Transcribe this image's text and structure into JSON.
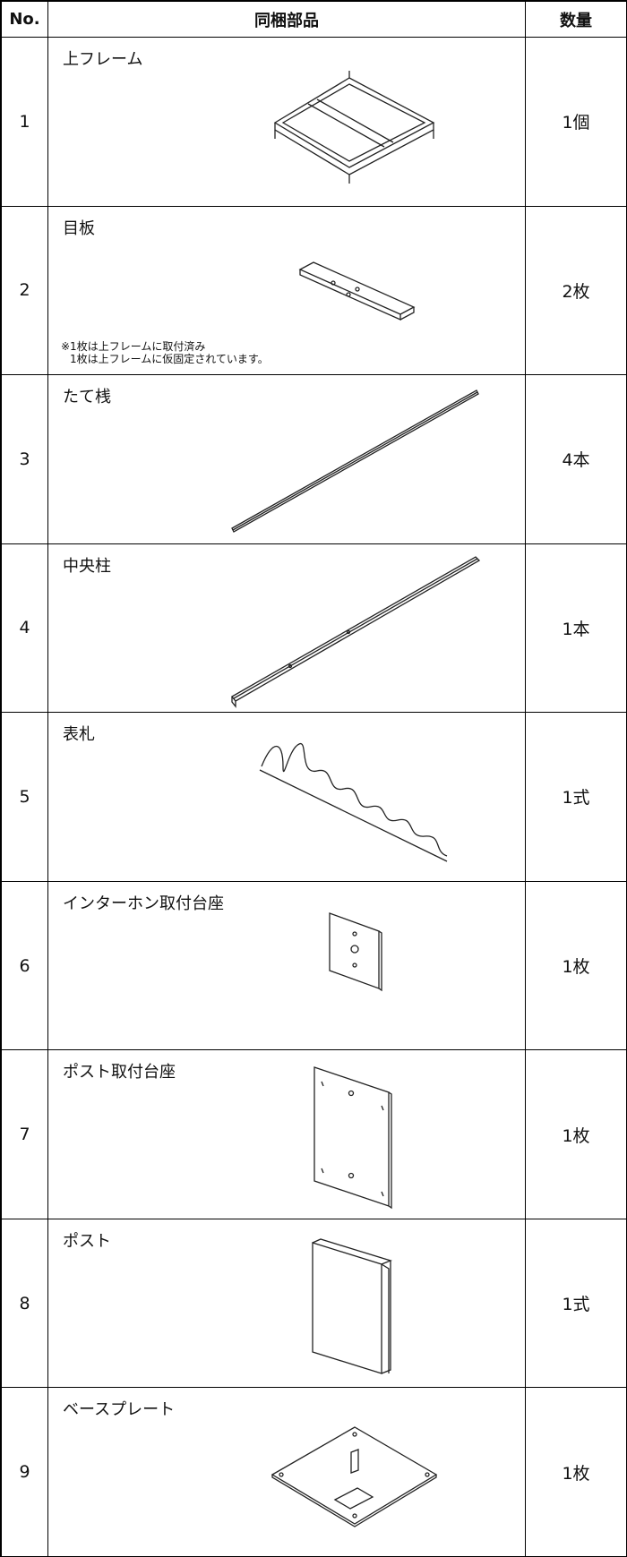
{
  "table": {
    "header": [
      "No.",
      "同梱部品",
      "数量"
    ],
    "rows": [
      {
        "no": "1",
        "name": "上フレーム",
        "qty": "1個"
      },
      {
        "no": "2",
        "name": "目板",
        "note": [
          "※1枚は上フレームに取付済み",
          "1枚は上フレームに仮固定されています。"
        ],
        "qty": "2枚"
      },
      {
        "no": "3",
        "name": "たて桟",
        "qty": "4本"
      },
      {
        "no": "4",
        "name": "中央柱",
        "qty": "1本"
      },
      {
        "no": "5",
        "name": "表札",
        "qty": "1式"
      },
      {
        "no": "6",
        "name": "インターホン取付台座",
        "qty": "1枚"
      },
      {
        "no": "7",
        "name": "ポスト取付台座",
        "qty": "1枚"
      },
      {
        "no": "8",
        "name": "ポスト",
        "qty": "1式"
      },
      {
        "no": "9",
        "name": "ベースプレート",
        "qty": "1枚"
      }
    ]
  }
}
